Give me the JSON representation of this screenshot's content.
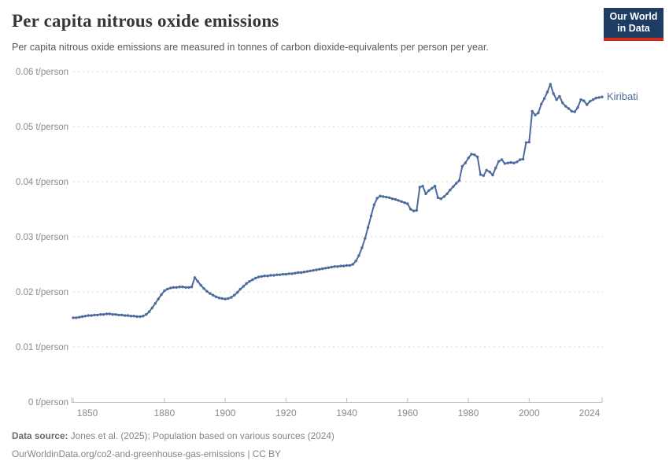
{
  "header": {
    "title": "Per capita nitrous oxide emissions",
    "subtitle": "Per capita nitrous oxide emissions are measured in tonnes of carbon dioxide-equivalents per person per year.",
    "logo": {
      "line1": "Our World",
      "line2": "in Data",
      "bg_color": "#1d3d63",
      "accent_color": "#d42b21"
    }
  },
  "chart_data": {
    "type": "line",
    "title": "Per capita nitrous oxide emissions",
    "unit": "t/person",
    "xlim": [
      1850,
      2024
    ],
    "ylim": [
      0,
      0.06
    ],
    "grid": "horizontal dashed",
    "legend_position": "end-of-line label",
    "x_ticks": [
      1850,
      1880,
      1900,
      1920,
      1940,
      1960,
      1980,
      2000,
      2024
    ],
    "y_ticks": [
      {
        "value": 0,
        "label": "0 t/person"
      },
      {
        "value": 0.01,
        "label": "0.01 t/person"
      },
      {
        "value": 0.02,
        "label": "0.02 t/person"
      },
      {
        "value": 0.03,
        "label": "0.03 t/person"
      },
      {
        "value": 0.04,
        "label": "0.04 t/person"
      },
      {
        "value": 0.05,
        "label": "0.05 t/person"
      },
      {
        "value": 0.06,
        "label": "0.06 t/person"
      }
    ],
    "series": [
      {
        "name": "Kiribati",
        "color": "#4C6A9C",
        "start_year": 1850,
        "end_year": 2024,
        "values": [
          0.0153,
          0.0153,
          0.0154,
          0.0155,
          0.0156,
          0.0157,
          0.0157,
          0.0158,
          0.0158,
          0.0159,
          0.0159,
          0.016,
          0.016,
          0.0159,
          0.0159,
          0.0158,
          0.0158,
          0.0157,
          0.0157,
          0.0156,
          0.0156,
          0.0155,
          0.0155,
          0.0156,
          0.0159,
          0.0164,
          0.0171,
          0.0179,
          0.0187,
          0.0195,
          0.0202,
          0.0205,
          0.0207,
          0.0208,
          0.0208,
          0.0209,
          0.0209,
          0.0208,
          0.0208,
          0.0209,
          0.0226,
          0.0219,
          0.0212,
          0.0206,
          0.0201,
          0.0197,
          0.0194,
          0.0191,
          0.0189,
          0.0188,
          0.0187,
          0.0188,
          0.019,
          0.0194,
          0.0199,
          0.0205,
          0.021,
          0.0215,
          0.0219,
          0.0222,
          0.0225,
          0.0227,
          0.0228,
          0.0229,
          0.0229,
          0.023,
          0.023,
          0.0231,
          0.0231,
          0.0232,
          0.0232,
          0.0233,
          0.0233,
          0.0234,
          0.0235,
          0.0235,
          0.0236,
          0.0237,
          0.0238,
          0.0239,
          0.024,
          0.0241,
          0.0242,
          0.0243,
          0.0244,
          0.0245,
          0.0246,
          0.0246,
          0.0247,
          0.0247,
          0.0248,
          0.0248,
          0.025,
          0.0256,
          0.0266,
          0.028,
          0.0297,
          0.0317,
          0.0338,
          0.0358,
          0.037,
          0.0374,
          0.0373,
          0.0372,
          0.0371,
          0.0369,
          0.0368,
          0.0366,
          0.0364,
          0.0362,
          0.036,
          0.035,
          0.0347,
          0.0348,
          0.039,
          0.0392,
          0.0378,
          0.0384,
          0.0388,
          0.0392,
          0.0371,
          0.0369,
          0.0373,
          0.0378,
          0.0385,
          0.0391,
          0.0397,
          0.0402,
          0.0428,
          0.0434,
          0.0443,
          0.045,
          0.0449,
          0.0445,
          0.0413,
          0.0411,
          0.0421,
          0.0418,
          0.0412,
          0.0425,
          0.0437,
          0.044,
          0.0433,
          0.0434,
          0.0435,
          0.0434,
          0.0436,
          0.044,
          0.0441,
          0.0471,
          0.0472,
          0.0528,
          0.0521,
          0.0525,
          0.0541,
          0.0551,
          0.0563,
          0.0577,
          0.056,
          0.0549,
          0.0555,
          0.0543,
          0.0537,
          0.0533,
          0.0528,
          0.0527,
          0.0535,
          0.0549,
          0.0547,
          0.054,
          0.0546,
          0.0549,
          0.0552,
          0.0553,
          0.0554
        ]
      }
    ]
  },
  "footer": {
    "source_label": "Data source:",
    "source_text": " Jones et al. (2025); Population based on various sources (2024)",
    "license_line": "OurWorldinData.org/co2-and-greenhouse-gas-emissions | CC BY"
  }
}
